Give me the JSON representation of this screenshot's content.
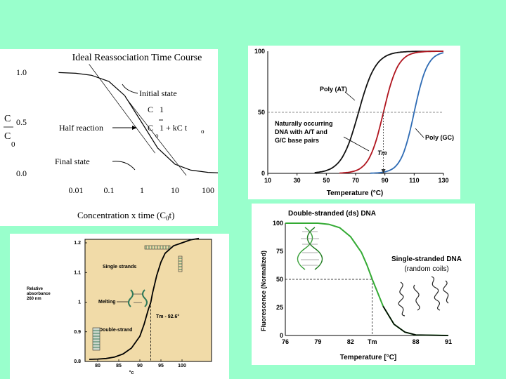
{
  "chart_data": [
    {
      "type": "line",
      "title": "Ideal Reassociation Time Course",
      "xlabel": "Concentration x time (C0t)",
      "ylabel": "C / C0",
      "xscale": "log",
      "xlim": [
        0.003,
        300
      ],
      "ylim": [
        0,
        1.0
      ],
      "x_ticks": [
        "0.01",
        "0.1",
        "1",
        "10",
        "100"
      ],
      "y_ticks": [
        "1.0",
        "0.5",
        "0.0"
      ],
      "series": [
        {
          "x": [
            0.003,
            0.01,
            0.03,
            0.1,
            0.3,
            1,
            3,
            10,
            30,
            100,
            300
          ],
          "values": [
            0.997,
            0.99,
            0.97,
            0.91,
            0.77,
            0.5,
            0.25,
            0.09,
            0.032,
            0.01,
            0.003
          ]
        }
      ],
      "annotations": {
        "initial": "Initial state",
        "half": "Half reaction",
        "final": "Final state",
        "eq_num": "C   1",
        "eq_den": "C   1 + kC t",
        "sub_o": "o"
      }
    },
    {
      "type": "line",
      "xlabel": "Temperature (°C)",
      "xlim": [
        10,
        130
      ],
      "ylim": [
        0,
        100
      ],
      "x_ticks": [
        "10",
        "30",
        "50",
        "70",
        "90",
        "110",
        "130"
      ],
      "y_ticks": [
        "100",
        "50",
        "0"
      ],
      "series": [
        {
          "name": "Poly (AT)",
          "color": "#111111",
          "tm": 72
        },
        {
          "name": "Naturally occurring DNA with A/T and G/C base pairs",
          "color": "#b0141e",
          "tm": 89
        },
        {
          "name": "Poly (GC)",
          "color": "#2e6bb4",
          "tm": 110
        }
      ],
      "labels": {
        "poly_at": "Poly (AT)",
        "natural_1": "Naturally occurring",
        "natural_2": "DNA with A/T and",
        "natural_3": "G/C base pairs",
        "poly_gc": "Poly (GC)",
        "tm": "Tm"
      }
    },
    {
      "type": "line",
      "xlabel": "°c",
      "ylabel": "Relative absorbance 260 nm",
      "xlim": [
        77,
        107
      ],
      "ylim": [
        0.8,
        1.22
      ],
      "x_ticks": [
        "80",
        "85",
        "90",
        "95",
        "100"
      ],
      "y_ticks": [
        "1.2",
        "1.1",
        "1",
        "0.9",
        "0.8"
      ],
      "tm": 92.6,
      "series": [
        {
          "x": [
            78,
            80,
            82,
            84,
            86,
            88,
            90,
            91,
            92,
            92.6,
            93,
            94,
            95,
            96,
            98,
            100,
            102,
            104
          ],
          "values": [
            0.807,
            0.808,
            0.81,
            0.815,
            0.825,
            0.845,
            0.885,
            0.925,
            0.975,
            1.0,
            1.03,
            1.09,
            1.135,
            1.165,
            1.19,
            1.2,
            1.21,
            1.215
          ]
        }
      ],
      "labels": {
        "single": "Single strands",
        "melting": "Melting",
        "double": "Double-strand",
        "tm": "Tm - 92.6°",
        "ylabel_1": "Relative",
        "ylabel_2": "absorbance",
        "ylabel_3": "260 nm"
      }
    },
    {
      "type": "line",
      "title": "Double-stranded (ds) DNA",
      "xlabel": "Temperature [°C]",
      "ylabel": "Fluorescence (Normalized)",
      "xlim": [
        76,
        91
      ],
      "ylim": [
        0,
        100
      ],
      "x_ticks": [
        "76",
        "79",
        "82",
        "Tm",
        "88",
        "91"
      ],
      "y_ticks": [
        "100",
        "75",
        "50",
        "25",
        "0"
      ],
      "tm": 84,
      "series": [
        {
          "x": [
            76,
            78,
            79,
            80,
            81,
            82,
            83,
            83.5,
            84,
            84.5,
            85,
            86,
            87,
            88,
            91
          ],
          "values": [
            100,
            100,
            100,
            99,
            96,
            88,
            74,
            63,
            50,
            38,
            26,
            10,
            3,
            0.5,
            0
          ]
        }
      ],
      "labels": {
        "ss1": "Single-stranded DNA",
        "ss2": "(random coils)"
      }
    }
  ]
}
